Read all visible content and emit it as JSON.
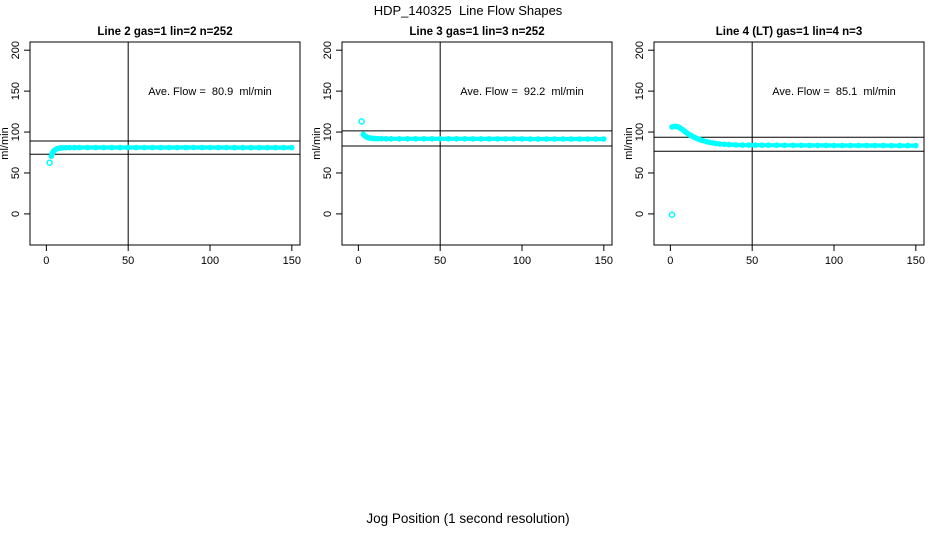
{
  "figure": {
    "title": "HDP_140325  Line Flow Shapes",
    "xlabel": "Jog Position (1 second resolution)",
    "background_color": "#ffffff",
    "axis_color": "#000000",
    "marker_color": "#00ffff"
  },
  "chart_data": [
    {
      "type": "scatter",
      "title": "Line 2 gas=1 lin=2 n=252",
      "line": 2,
      "gas": 1,
      "lin": 2,
      "n": 252,
      "ylabel": "ml/min",
      "annotation": "Ave. Flow =  80.9  ml/min",
      "annotation_xy": [
        100,
        150
      ],
      "ave_flow_ml_min": 80.9,
      "color": "#00ffff",
      "xticks": [
        0,
        50,
        100,
        150
      ],
      "yticks": [
        0,
        50,
        100,
        150,
        200
      ],
      "axis_range_x": [
        -10,
        155
      ],
      "axis_range_y": [
        -38,
        210
      ],
      "vline_x": 50,
      "hlines": [
        89.0,
        72.8
      ],
      "band_points": [
        [
          3,
          70.5
        ],
        [
          3.5,
          73.5
        ],
        [
          4,
          75.5
        ],
        [
          4.5,
          76.8
        ],
        [
          5,
          77.8
        ],
        [
          6,
          79.2
        ],
        [
          7,
          79.9
        ],
        [
          8,
          80.3
        ],
        [
          9,
          80.6
        ],
        [
          10,
          80.7
        ],
        [
          12,
          80.9
        ],
        [
          14,
          81
        ],
        [
          17,
          81
        ],
        [
          20,
          81.1
        ],
        [
          25,
          81.1
        ],
        [
          30,
          81.1
        ],
        [
          35,
          81.1
        ],
        [
          40,
          81.1
        ],
        [
          45,
          81.1
        ],
        [
          50,
          81.1
        ],
        [
          55,
          81.1
        ],
        [
          60,
          81.1
        ],
        [
          65,
          81.1
        ],
        [
          70,
          81.1
        ],
        [
          75,
          81.1
        ],
        [
          80,
          81.1
        ],
        [
          85,
          81.1
        ],
        [
          90,
          81.1
        ],
        [
          95,
          81.1
        ],
        [
          100,
          81.1
        ],
        [
          105,
          81.1
        ],
        [
          110,
          81.1
        ],
        [
          115,
          81
        ],
        [
          120,
          81
        ],
        [
          125,
          81
        ],
        [
          130,
          81
        ],
        [
          135,
          81
        ],
        [
          140,
          81
        ],
        [
          145,
          81
        ],
        [
          150,
          81
        ]
      ],
      "outlier_points": [
        [
          2,
          62.5
        ]
      ]
    },
    {
      "type": "scatter",
      "title": "Line 3 gas=1 lin=3 n=252",
      "line": 3,
      "gas": 1,
      "lin": 3,
      "n": 252,
      "ylabel": "ml/min",
      "annotation": "Ave. Flow =  92.2  ml/min",
      "annotation_xy": [
        100,
        150
      ],
      "ave_flow_ml_min": 92.2,
      "color": "#00ffff",
      "xticks": [
        0,
        50,
        100,
        150
      ],
      "yticks": [
        0,
        50,
        100,
        150,
        200
      ],
      "axis_range_x": [
        -10,
        155
      ],
      "axis_range_y": [
        -38,
        210
      ],
      "vline_x": 50,
      "hlines": [
        101.4,
        83.0
      ],
      "band_points": [
        [
          3,
          97.3
        ],
        [
          3.5,
          96.2
        ],
        [
          4,
          95.3
        ],
        [
          4.5,
          94.6
        ],
        [
          5,
          94
        ],
        [
          6,
          93.1
        ],
        [
          7,
          92.6
        ],
        [
          8,
          92.3
        ],
        [
          9,
          92.1
        ],
        [
          10,
          92
        ],
        [
          12,
          91.9
        ],
        [
          14,
          91.9
        ],
        [
          17,
          91.8
        ],
        [
          20,
          91.8
        ],
        [
          25,
          91.8
        ],
        [
          30,
          91.8
        ],
        [
          35,
          91.7
        ],
        [
          40,
          91.7
        ],
        [
          45,
          91.7
        ],
        [
          50,
          91.7
        ],
        [
          55,
          91.7
        ],
        [
          60,
          91.7
        ],
        [
          65,
          91.7
        ],
        [
          70,
          91.6
        ],
        [
          75,
          91.6
        ],
        [
          80,
          91.6
        ],
        [
          85,
          91.6
        ],
        [
          90,
          91.6
        ],
        [
          95,
          91.6
        ],
        [
          100,
          91.6
        ],
        [
          105,
          91.5
        ],
        [
          110,
          91.5
        ],
        [
          115,
          91.5
        ],
        [
          120,
          91.5
        ],
        [
          125,
          91.5
        ],
        [
          130,
          91.5
        ],
        [
          135,
          91.5
        ],
        [
          140,
          91.5
        ],
        [
          145,
          91.5
        ],
        [
          150,
          91.5
        ]
      ],
      "outlier_points": [
        [
          2,
          113
        ]
      ]
    },
    {
      "type": "scatter",
      "title": "Line 4 (LT) gas=1 lin=4 n=3",
      "line": 4,
      "line_note": "(LT)",
      "gas": 1,
      "lin": 4,
      "n": 3,
      "ylabel": "ml/min",
      "annotation": "Ave. Flow =  85.1  ml/min",
      "annotation_xy": [
        100,
        150
      ],
      "ave_flow_ml_min": 85.1,
      "color": "#00ffff",
      "xticks": [
        0,
        50,
        100,
        150
      ],
      "yticks": [
        0,
        50,
        100,
        150,
        200
      ],
      "axis_range_x": [
        -10,
        155
      ],
      "axis_range_y": [
        -38,
        210
      ],
      "vline_x": 50,
      "hlines": [
        93.6,
        76.6
      ],
      "band_points": [
        [
          1,
          106.3
        ],
        [
          2,
          106.8
        ],
        [
          3,
          107
        ],
        [
          4,
          106.7
        ],
        [
          5,
          106
        ],
        [
          6,
          104.9
        ],
        [
          7,
          103.5
        ],
        [
          8,
          102
        ],
        [
          9,
          100.5
        ],
        [
          10,
          99
        ],
        [
          11,
          97.7
        ],
        [
          12,
          96.4
        ],
        [
          13,
          95.3
        ],
        [
          14,
          94.2
        ],
        [
          15,
          93.2
        ],
        [
          16,
          92.3
        ],
        [
          17,
          91.5
        ],
        [
          18,
          90.7
        ],
        [
          19,
          90
        ],
        [
          20,
          89.4
        ],
        [
          22,
          88.3
        ],
        [
          24,
          87.4
        ],
        [
          26,
          86.6
        ],
        [
          28,
          86
        ],
        [
          30,
          85.5
        ],
        [
          33,
          85
        ],
        [
          36,
          84.6
        ],
        [
          40,
          84.3
        ],
        [
          44,
          84.1
        ],
        [
          48,
          84
        ],
        [
          52,
          84
        ],
        [
          56,
          83.9
        ],
        [
          60,
          83.9
        ],
        [
          65,
          83.9
        ],
        [
          70,
          83.8
        ],
        [
          75,
          83.8
        ],
        [
          80,
          83.8
        ],
        [
          85,
          83.7
        ],
        [
          90,
          83.7
        ],
        [
          95,
          83.7
        ],
        [
          100,
          83.6
        ],
        [
          105,
          83.6
        ],
        [
          110,
          83.6
        ],
        [
          115,
          83.5
        ],
        [
          120,
          83.5
        ],
        [
          125,
          83.5
        ],
        [
          130,
          83.5
        ],
        [
          135,
          83.4
        ],
        [
          140,
          83.4
        ],
        [
          145,
          83.4
        ],
        [
          150,
          83.4
        ]
      ],
      "outlier_points": [
        [
          1,
          -1
        ]
      ]
    }
  ]
}
